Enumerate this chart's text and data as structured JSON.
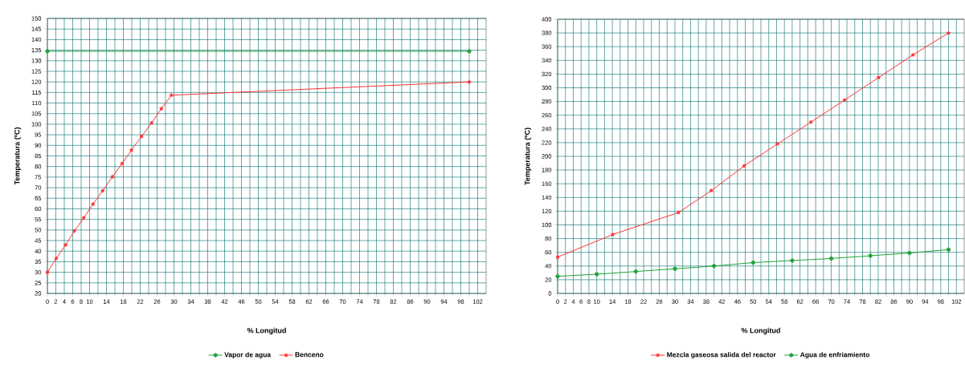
{
  "chart_data": [
    {
      "type": "line",
      "xlabel": "% Longitud",
      "ylabel": "Temperatura (ºC)",
      "xlim": [
        0,
        104
      ],
      "ylim": [
        20,
        150
      ],
      "xticks": [
        0,
        2,
        4,
        6,
        8,
        10,
        {
          "value": 12,
          "label": null
        },
        14,
        {
          "value": 16,
          "label": null
        },
        18,
        {
          "value": 20,
          "label": null
        },
        22,
        {
          "value": 24,
          "label": null
        },
        26,
        {
          "value": 28,
          "label": null
        },
        30,
        {
          "value": 32,
          "label": null
        },
        34,
        {
          "value": 36,
          "label": null
        },
        38,
        {
          "value": 40,
          "label": null
        },
        42,
        {
          "value": 44,
          "label": null
        },
        46,
        {
          "value": 48,
          "label": null
        },
        50,
        {
          "value": 52,
          "label": null
        },
        54,
        {
          "value": 56,
          "label": null
        },
        58,
        {
          "value": 60,
          "label": null
        },
        62,
        {
          "value": 64,
          "label": null
        },
        66,
        {
          "value": 68,
          "label": null
        },
        70,
        {
          "value": 72,
          "label": null
        },
        74,
        {
          "value": 76,
          "label": null
        },
        78,
        {
          "value": 80,
          "label": null
        },
        82,
        {
          "value": 84,
          "label": null
        },
        86,
        {
          "value": 88,
          "label": null
        },
        90,
        {
          "value": 92,
          "label": null
        },
        94,
        {
          "value": 96,
          "label": null
        },
        98,
        {
          "value": 100,
          "label": null
        },
        102
      ],
      "yticks": [
        20,
        25,
        30,
        35,
        40,
        45,
        50,
        55,
        60,
        65,
        70,
        75,
        80,
        85,
        90,
        95,
        100,
        105,
        110,
        115,
        120,
        125,
        130,
        135,
        140,
        145,
        150
      ],
      "grid": true,
      "legend": "bottom",
      "line_style": "solid",
      "series": [
        {
          "name": "Vapor de agua",
          "color": "#22a33a",
          "marker": "circle",
          "x": [
            0,
            100
          ],
          "values": [
            134.5,
            134.5
          ]
        },
        {
          "name": "Benceno",
          "color": "#ff3333",
          "marker": "star",
          "x": [
            0,
            2.1,
            4.3,
            6.4,
            8.6,
            10.8,
            13.1,
            15.4,
            17.7,
            19.9,
            22.3,
            24.7,
            27.0,
            29.4,
            100
          ],
          "values": [
            30,
            36.6,
            42.9,
            49.5,
            55.7,
            62.2,
            68.5,
            75.1,
            81.4,
            87.7,
            94.2,
            100.6,
            107.3,
            113.7,
            120
          ]
        }
      ]
    },
    {
      "type": "line",
      "xlabel": "% Longitud",
      "ylabel": "Temperatura (ºC)",
      "xlim": [
        0,
        104
      ],
      "ylim": [
        0,
        400
      ],
      "xticks": [
        0,
        2,
        4,
        6,
        8,
        10,
        {
          "value": 12,
          "label": null
        },
        14,
        {
          "value": 16,
          "label": null
        },
        18,
        {
          "value": 20,
          "label": null
        },
        22,
        {
          "value": 24,
          "label": null
        },
        26,
        {
          "value": 28,
          "label": null
        },
        30,
        {
          "value": 32,
          "label": null
        },
        34,
        {
          "value": 36,
          "label": null
        },
        38,
        {
          "value": 40,
          "label": null
        },
        42,
        {
          "value": 44,
          "label": null
        },
        46,
        {
          "value": 48,
          "label": null
        },
        50,
        {
          "value": 52,
          "label": null
        },
        54,
        {
          "value": 56,
          "label": null
        },
        58,
        {
          "value": 60,
          "label": null
        },
        62,
        {
          "value": 64,
          "label": null
        },
        66,
        {
          "value": 68,
          "label": null
        },
        70,
        {
          "value": 72,
          "label": null
        },
        74,
        {
          "value": 76,
          "label": null
        },
        78,
        {
          "value": 80,
          "label": null
        },
        82,
        {
          "value": 84,
          "label": null
        },
        86,
        {
          "value": 88,
          "label": null
        },
        90,
        {
          "value": 92,
          "label": null
        },
        94,
        {
          "value": 96,
          "label": null
        },
        98,
        {
          "value": 100,
          "label": null
        },
        102
      ],
      "yticks": [
        0,
        20,
        40,
        60,
        80,
        100,
        120,
        140,
        160,
        180,
        200,
        220,
        240,
        260,
        280,
        300,
        320,
        340,
        360,
        380,
        400
      ],
      "grid": true,
      "legend": "bottom",
      "line_style": "solid",
      "series": [
        {
          "name": "Mezcla gaseosa salida del reactor",
          "color": "#ff3333",
          "marker": "star",
          "x": [
            0,
            14.1,
            30.9,
            39.3,
            47.7,
            56.2,
            64.8,
            73.4,
            82.1,
            90.9,
            100
          ],
          "values": [
            53,
            86,
            118,
            150,
            186,
            218,
            250,
            282,
            315,
            348,
            380
          ]
        },
        {
          "name": "Agua de enfriamiento",
          "color": "#22a33a",
          "marker": "circle",
          "x": [
            0,
            10,
            20,
            30,
            40,
            50,
            60,
            70,
            80,
            90,
            100
          ],
          "values": [
            25,
            28,
            32,
            36,
            40,
            45,
            48,
            51,
            55,
            59,
            64
          ]
        }
      ]
    }
  ]
}
